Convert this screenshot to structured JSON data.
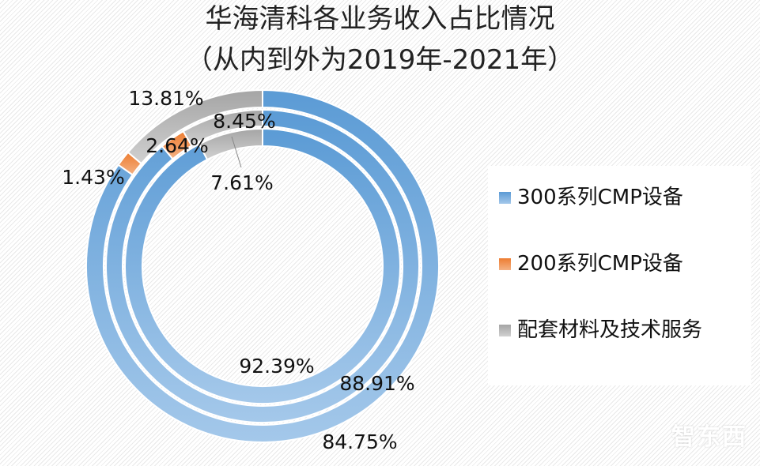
{
  "chart_data": {
    "type": "donut",
    "title": "华海清科各业务收入占比情况",
    "subtitle": "（从内到外为2019年-2021年）",
    "categories": [
      "300系列CMP设备",
      "200系列CMP设备",
      "配套材料及技术服务"
    ],
    "rings": [
      {
        "year": "2019",
        "position": "inner",
        "values": [
          92.39,
          0,
          7.61
        ],
        "labels": [
          "92.39%",
          "",
          "7.61%"
        ]
      },
      {
        "year": "2020",
        "position": "middle",
        "values": [
          88.91,
          2.64,
          8.45
        ],
        "labels": [
          "88.91%",
          "2.64%",
          "8.45%"
        ]
      },
      {
        "year": "2021",
        "position": "outer",
        "values": [
          84.75,
          1.43,
          13.81
        ],
        "labels": [
          "84.75%",
          "1.43%",
          "13.81%"
        ]
      }
    ],
    "colors": [
      "#5b9bd5",
      "#ed7d31",
      "#a5a5a5"
    ],
    "legend": {
      "placement": "right",
      "items": [
        "300系列CMP设备",
        "200系列CMP设备",
        "配套材料及技术服务"
      ]
    }
  },
  "watermark": "智东西"
}
